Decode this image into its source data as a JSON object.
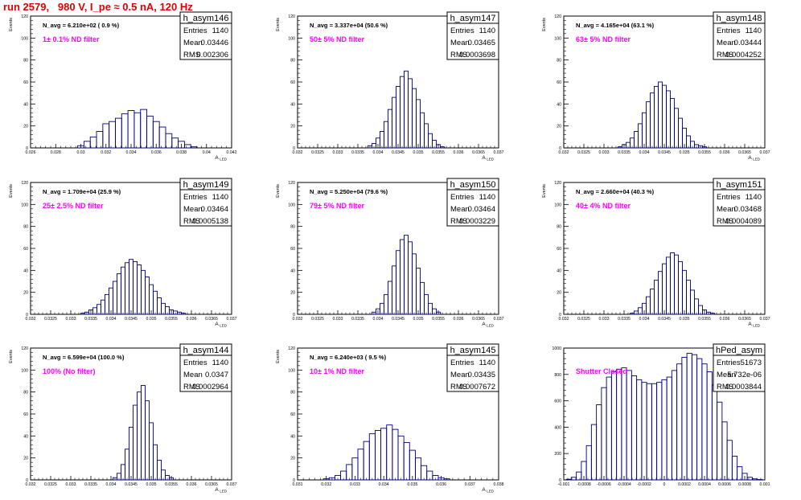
{
  "title": "run 2579,   980 V, I_pe ≈ 0.5 nA, 120 Hz",
  "colors": {
    "title": "#e00000",
    "histogram": "#000080",
    "annotation": "#ff00ff",
    "frame": "#000000"
  },
  "chart_data": [
    {
      "type": "histogram",
      "name": "h_asym146",
      "stats": {
        "Entries": "1140",
        "Mean": "0.03446",
        "RMS": "0.002306"
      },
      "navg": "N_avg = 6.210e+02 ( 0.9 %)",
      "note": "1± 0.1% ND filter",
      "xlim": [
        0.026,
        0.042
      ],
      "ylim": [
        0,
        120
      ],
      "ylabel": "Events",
      "xlabel": "A_LED",
      "xticks": [
        "0.026",
        "0.028",
        "0.03",
        "0.032",
        "0.034",
        "0.036",
        "0.038",
        "0.04",
        "0.042"
      ],
      "yticks": [
        "0",
        "20",
        "40",
        "60",
        "80",
        "100",
        "120"
      ],
      "x": [
        0.03,
        0.0305,
        0.031,
        0.0315,
        0.032,
        0.0325,
        0.033,
        0.0335,
        0.034,
        0.0345,
        0.035,
        0.0355,
        0.036,
        0.0365,
        0.037,
        0.0375,
        0.038,
        0.0385,
        0.039
      ],
      "values": [
        2,
        6,
        10,
        15,
        22,
        24,
        27,
        31,
        34,
        32,
        35,
        29,
        24,
        19,
        13,
        9,
        6,
        3,
        1
      ]
    },
    {
      "type": "histogram",
      "name": "h_asym147",
      "stats": {
        "Entries": "1140",
        "Mean": "0.03465",
        "RMS": "0.0003698"
      },
      "navg": "N_avg = 3.337e+04 (50.6 %)",
      "note": "50± 5% ND filter",
      "xlim": [
        0.032,
        0.037
      ],
      "ylim": [
        0,
        120
      ],
      "ylabel": "Events",
      "xlabel": "A_LED",
      "xticks": [
        "0.032",
        "0.0325",
        "0.033",
        "0.0335",
        "0.034",
        "0.0345",
        "0.035",
        "0.0355",
        "0.036",
        "0.0365",
        "0.037"
      ],
      "yticks": [
        "0",
        "20",
        "40",
        "60",
        "80",
        "100",
        "120"
      ],
      "x": [
        0.0338,
        0.0339,
        0.034,
        0.0341,
        0.0342,
        0.0343,
        0.0344,
        0.0345,
        0.0346,
        0.0347,
        0.0348,
        0.0349,
        0.035,
        0.0351,
        0.0352,
        0.0353,
        0.0354,
        0.0355,
        0.0356
      ],
      "values": [
        2,
        4,
        9,
        15,
        24,
        35,
        46,
        56,
        65,
        70,
        63,
        54,
        44,
        32,
        22,
        13,
        7,
        3,
        1
      ]
    },
    {
      "type": "histogram",
      "name": "h_asym148",
      "stats": {
        "Entries": "1140",
        "Mean": "0.03444",
        "RMS": "0.0004252"
      },
      "navg": "N_avg = 4.165e+04 (63.1 %)",
      "note": "63± 5% ND filter",
      "xlim": [
        0.032,
        0.037
      ],
      "ylim": [
        0,
        120
      ],
      "ylabel": "Events",
      "xlabel": "A_LED",
      "xticks": [
        "0.032",
        "0.0325",
        "0.033",
        "0.0335",
        "0.034",
        "0.0345",
        "0.035",
        "0.0355",
        "0.036",
        "0.0365",
        "0.037"
      ],
      "yticks": [
        "0",
        "20",
        "40",
        "60",
        "80",
        "100",
        "120"
      ],
      "x": [
        0.0334,
        0.0335,
        0.0336,
        0.0337,
        0.0338,
        0.0339,
        0.034,
        0.0341,
        0.0342,
        0.0343,
        0.0344,
        0.0345,
        0.0346,
        0.0347,
        0.0348,
        0.0349,
        0.035,
        0.0351,
        0.0352,
        0.0353,
        0.0354,
        0.0355
      ],
      "values": [
        1,
        3,
        5,
        9,
        15,
        22,
        32,
        42,
        50,
        56,
        60,
        57,
        52,
        45,
        36,
        27,
        18,
        11,
        6,
        3,
        2,
        1
      ]
    },
    {
      "type": "histogram",
      "name": "h_asym149",
      "stats": {
        "Entries": "1140",
        "Mean": "0.03464",
        "RMS": "0.0005138"
      },
      "navg": "N_avg = 1.709e+04 (25.9 %)",
      "note": "25± 2.5% ND filter",
      "xlim": [
        0.032,
        0.037
      ],
      "ylim": [
        0,
        120
      ],
      "ylabel": "Events",
      "xlabel": "A_LED",
      "xticks": [
        "0.032",
        "0.0325",
        "0.033",
        "0.0335",
        "0.034",
        "0.0345",
        "0.035",
        "0.0355",
        "0.036",
        "0.0365",
        "0.037"
      ],
      "yticks": [
        "0",
        "20",
        "40",
        "60",
        "80",
        "100",
        "120"
      ],
      "x": [
        0.0333,
        0.0334,
        0.0335,
        0.0336,
        0.0337,
        0.0338,
        0.0339,
        0.034,
        0.0341,
        0.0342,
        0.0343,
        0.0344,
        0.0345,
        0.0346,
        0.0347,
        0.0348,
        0.0349,
        0.035,
        0.0351,
        0.0352,
        0.0353,
        0.0354,
        0.0355,
        0.0356,
        0.0357,
        0.0358
      ],
      "values": [
        1,
        2,
        4,
        6,
        9,
        13,
        18,
        24,
        30,
        37,
        43,
        47,
        50,
        48,
        45,
        40,
        34,
        27,
        21,
        15,
        10,
        7,
        4,
        3,
        2,
        1
      ]
    },
    {
      "type": "histogram",
      "name": "h_asym150",
      "stats": {
        "Entries": "1140",
        "Mean": "0.03464",
        "RMS": "0.0003229"
      },
      "navg": "N_avg = 5.250e+04 (79.6 %)",
      "note": "79± 5% ND filter",
      "xlim": [
        0.032,
        0.037
      ],
      "ylim": [
        0,
        120
      ],
      "ylabel": "Events",
      "xlabel": "A_LED",
      "xticks": [
        "0.032",
        "0.0325",
        "0.033",
        "0.0335",
        "0.034",
        "0.0345",
        "0.035",
        "0.0355",
        "0.036",
        "0.0365",
        "0.037"
      ],
      "yticks": [
        "0",
        "20",
        "40",
        "60",
        "80",
        "100",
        "120"
      ],
      "x": [
        0.0339,
        0.034,
        0.0341,
        0.0342,
        0.0343,
        0.0344,
        0.0345,
        0.0346,
        0.0347,
        0.0348,
        0.0349,
        0.035,
        0.0351,
        0.0352,
        0.0353,
        0.0354,
        0.0355
      ],
      "values": [
        2,
        5,
        10,
        18,
        30,
        44,
        58,
        68,
        72,
        66,
        55,
        42,
        29,
        18,
        10,
        5,
        2
      ]
    },
    {
      "type": "histogram",
      "name": "h_asym151",
      "stats": {
        "Entries": "1140",
        "Mean": "0.03468",
        "RMS": "0.0004089"
      },
      "navg": "N_avg = 2.660e+04 (40.3 %)",
      "note": "40± 4% ND filter",
      "xlim": [
        0.032,
        0.037
      ],
      "ylim": [
        0,
        120
      ],
      "ylabel": "Events",
      "xlabel": "A_LED",
      "xticks": [
        "0.032",
        "0.0325",
        "0.033",
        "0.0335",
        "0.034",
        "0.0345",
        "0.035",
        "0.0355",
        "0.036",
        "0.0365",
        "0.037"
      ],
      "yticks": [
        "0",
        "20",
        "40",
        "60",
        "80",
        "100",
        "120"
      ],
      "x": [
        0.0337,
        0.0338,
        0.0339,
        0.034,
        0.0341,
        0.0342,
        0.0343,
        0.0344,
        0.0345,
        0.0346,
        0.0347,
        0.0348,
        0.0349,
        0.035,
        0.0351,
        0.0352,
        0.0353,
        0.0354,
        0.0355,
        0.0356,
        0.0357
      ],
      "values": [
        1,
        3,
        6,
        10,
        16,
        23,
        31,
        39,
        46,
        52,
        56,
        54,
        48,
        40,
        31,
        22,
        14,
        8,
        4,
        2,
        1
      ]
    },
    {
      "type": "histogram",
      "name": "h_asym144",
      "stats": {
        "Entries": "1140",
        "Mean": "0.0347",
        "RMS": "0.0002964"
      },
      "navg": "N_avg = 6.599e+04 (100.0 %)",
      "note": "100% (No filter)",
      "xlim": [
        0.032,
        0.037
      ],
      "ylim": [
        0,
        120
      ],
      "ylabel": "Events",
      "xlabel": "A_LED",
      "xticks": [
        "0.032",
        "0.0325",
        "0.033",
        "0.0335",
        "0.034",
        "0.0345",
        "0.035",
        "0.0355",
        "0.036",
        "0.0365",
        "0.037"
      ],
      "yticks": [
        "0",
        "20",
        "40",
        "60",
        "80",
        "100",
        "120"
      ],
      "x": [
        0.0341,
        0.0342,
        0.0343,
        0.0344,
        0.0345,
        0.0346,
        0.0347,
        0.0348,
        0.0349,
        0.035,
        0.0351,
        0.0352,
        0.0353,
        0.0354,
        0.0355
      ],
      "values": [
        2,
        6,
        14,
        28,
        48,
        68,
        80,
        86,
        72,
        52,
        32,
        18,
        9,
        4,
        2
      ]
    },
    {
      "type": "histogram",
      "name": "h_asym145",
      "stats": {
        "Entries": "1140",
        "Mean": "0.03435",
        "RMS": "0.0007672"
      },
      "navg": "N_avg = 6.240e+03 ( 9.5 %)",
      "note": "10± 1% ND filter",
      "xlim": [
        0.031,
        0.038
      ],
      "ylim": [
        0,
        120
      ],
      "ylabel": "Events",
      "xlabel": "A_LED",
      "xticks": [
        "0.031",
        "0.032",
        "0.033",
        "0.034",
        "0.035",
        "0.036",
        "0.037",
        "0.038"
      ],
      "yticks": [
        "0",
        "20",
        "40",
        "60",
        "80",
        "100",
        "120"
      ],
      "x": [
        0.032,
        0.0322,
        0.0324,
        0.0326,
        0.0328,
        0.033,
        0.0332,
        0.0334,
        0.0336,
        0.0338,
        0.034,
        0.0342,
        0.0344,
        0.0346,
        0.0348,
        0.035,
        0.0352,
        0.0354,
        0.0356,
        0.0358,
        0.036,
        0.0362
      ],
      "values": [
        1,
        2,
        4,
        8,
        14,
        20,
        28,
        35,
        42,
        45,
        47,
        50,
        46,
        40,
        34,
        27,
        20,
        13,
        8,
        4,
        2,
        1
      ]
    },
    {
      "type": "histogram",
      "name": "hPed_asym",
      "stats": {
        "Entries": "51673",
        "Mean": "5.732e-06",
        "RMS": "0.0003844"
      },
      "navg": "",
      "note": "Shutter Closed",
      "xlim": [
        -0.001,
        0.001
      ],
      "ylim": [
        0,
        1000
      ],
      "ylabel": "",
      "xlabel": "",
      "xticks": [
        "-0.001",
        "-0.0008",
        "-0.0006",
        "-0.0004",
        "-0.0002",
        "0",
        "0.0002",
        "0.0004",
        "0.0006",
        "0.0008",
        "0.001"
      ],
      "yticks": [
        "0",
        "200",
        "400",
        "600",
        "800",
        "1000"
      ],
      "x": [
        -0.00095,
        -0.0009,
        -0.00085,
        -0.0008,
        -0.00075,
        -0.0007,
        -0.00065,
        -0.0006,
        -0.00055,
        -0.0005,
        -0.00045,
        -0.0004,
        -0.00035,
        -0.0003,
        -0.00025,
        -0.0002,
        -0.00015,
        -0.0001,
        -5e-05,
        0.0,
        5e-05,
        0.0001,
        0.00015,
        0.0002,
        0.00025,
        0.0003,
        0.00035,
        0.0004,
        0.00045,
        0.0005,
        0.00055,
        0.0006,
        0.00065,
        0.0007,
        0.00075,
        0.0008,
        0.00085,
        0.0009,
        0.00095
      ],
      "values": [
        5,
        20,
        60,
        140,
        260,
        420,
        570,
        700,
        780,
        820,
        840,
        850,
        830,
        790,
        760,
        740,
        730,
        730,
        740,
        760,
        780,
        830,
        880,
        930,
        960,
        950,
        920,
        880,
        820,
        720,
        590,
        440,
        300,
        180,
        100,
        50,
        20,
        8,
        3
      ]
    }
  ]
}
